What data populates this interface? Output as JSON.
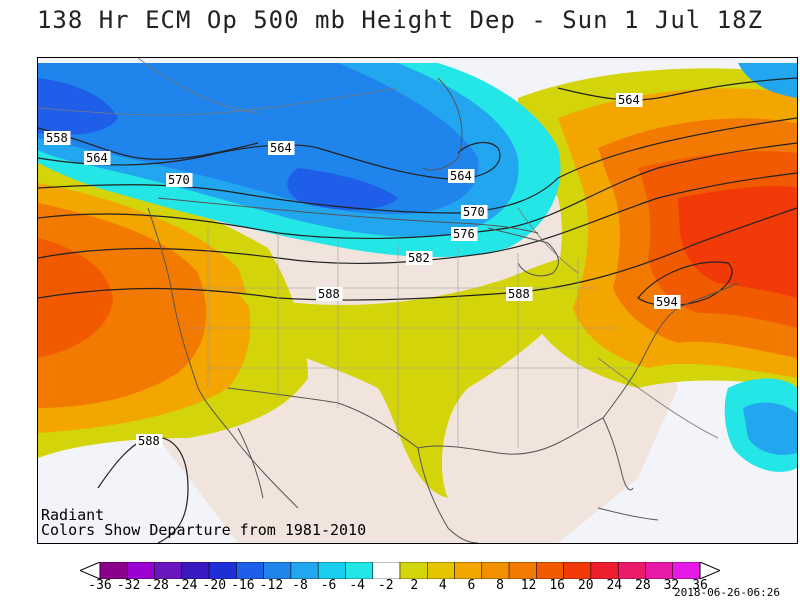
{
  "title": "138 Hr ECM Op 500 mb Height Dep - Sun 1 Jul 18Z",
  "footer": {
    "line1": "Radiant",
    "line2": "Colors Show Departure from 1981-2010"
  },
  "timestamp": "2018-06-26-06:26",
  "contour_labels": [
    "558",
    "564",
    "564",
    "564",
    "564",
    "570",
    "570",
    "576",
    "582",
    "588",
    "588",
    "594",
    "588"
  ],
  "colorbar": {
    "ticks": [
      "-36",
      "-32",
      "-28",
      "-24",
      "-20",
      "-16",
      "-12",
      "-8",
      "-6",
      "-4",
      "-2",
      "2",
      "4",
      "6",
      "8",
      "12",
      "16",
      "20",
      "24",
      "28",
      "32",
      "36"
    ],
    "colors": [
      "#8a008a",
      "#9a00d2",
      "#6a16c0",
      "#3a1ac0",
      "#1f2fd8",
      "#1e5ee8",
      "#1f84ec",
      "#22a6f0",
      "#18cdee",
      "#25e6e6",
      "#ffffff",
      "#d4d40a",
      "#e5c400",
      "#f3a500",
      "#f39000",
      "#f37a00",
      "#f25a00",
      "#f23a08",
      "#ef1f2f",
      "#ec1a6a",
      "#e81aa8",
      "#e51ae6"
    ]
  },
  "colors": {
    "land_neutral": "#f1e4dc",
    "ocean_neutral": "#f2f4fa",
    "yellow": "#d4d40a",
    "orange_light": "#f3a500",
    "orange": "#f37a00",
    "orange_red": "#f25a00",
    "red": "#f23a08",
    "blue_light": "#25e6e6",
    "blue_med": "#22a6f0",
    "blue": "#1f84ec",
    "blue_dark": "#1e5ee8"
  }
}
